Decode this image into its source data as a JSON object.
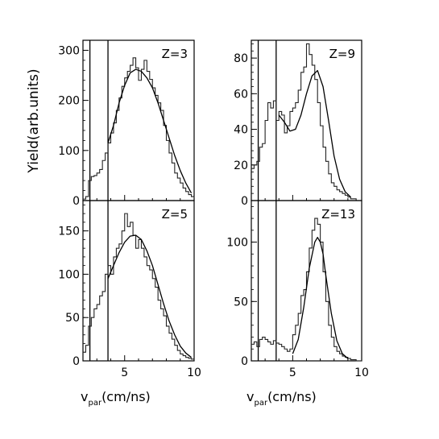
{
  "figure": {
    "ylabel": "Yield(arb.units)",
    "xlabel_main": "v",
    "xlabel_sub": "par",
    "xlabel_unit": "(cm/ns)"
  },
  "chart_data": [
    {
      "type": "line",
      "panel": "top-left",
      "annotation": "Z=3",
      "xlim": [
        2,
        10
      ],
      "ylim": [
        0,
        320
      ],
      "yticks": [
        0,
        100,
        200,
        300
      ],
      "xticks": [
        5,
        10
      ],
      "vlines": [
        2.5,
        3.8
      ],
      "series": [
        {
          "style": "histogram",
          "x": [
            2.0,
            2.2,
            2.4,
            2.6,
            2.8,
            3.0,
            3.2,
            3.4,
            3.6,
            3.8,
            4.0,
            4.2,
            4.4,
            4.6,
            4.8,
            5.0,
            5.2,
            5.4,
            5.6,
            5.8,
            6.0,
            6.2,
            6.4,
            6.6,
            6.8,
            7.0,
            7.2,
            7.4,
            7.6,
            7.8,
            8.0,
            8.2,
            8.4,
            8.6,
            8.8,
            9.0,
            9.2,
            9.4,
            9.6,
            9.8,
            10.0
          ],
          "y": [
            3,
            8,
            40,
            48,
            50,
            55,
            62,
            80,
            95,
            115,
            135,
            155,
            180,
            205,
            228,
            245,
            258,
            270,
            285,
            265,
            240,
            262,
            280,
            258,
            242,
            225,
            210,
            195,
            180,
            150,
            120,
            95,
            75,
            55,
            45,
            35,
            25,
            18,
            12,
            8,
            5
          ]
        },
        {
          "style": "fit",
          "x": [
            3.8,
            4.2,
            4.6,
            5.0,
            5.4,
            5.8,
            6.2,
            6.6,
            7.0,
            7.4,
            7.8,
            8.2,
            8.6,
            9.0,
            9.4,
            9.8
          ],
          "y": [
            115,
            150,
            195,
            230,
            255,
            262,
            258,
            245,
            225,
            195,
            160,
            125,
            90,
            60,
            35,
            15
          ]
        }
      ]
    },
    {
      "type": "line",
      "panel": "top-right",
      "annotation": "Z=9",
      "xlim": [
        2,
        10
      ],
      "ylim": [
        0,
        90
      ],
      "yticks": [
        0,
        20,
        40,
        60,
        80
      ],
      "xticks": [
        5,
        10
      ],
      "vlines": [
        2.5,
        3.8
      ],
      "series": [
        {
          "style": "histogram",
          "x": [
            2.0,
            2.2,
            2.4,
            2.6,
            2.8,
            3.0,
            3.2,
            3.4,
            3.6,
            3.8,
            4.0,
            4.2,
            4.4,
            4.6,
            4.8,
            5.0,
            5.2,
            5.4,
            5.6,
            5.8,
            6.0,
            6.2,
            6.4,
            6.6,
            6.8,
            7.0,
            7.2,
            7.4,
            7.6,
            7.8,
            8.0,
            8.2,
            8.4,
            8.6,
            8.8,
            9.0,
            9.2,
            9.4,
            9.6,
            9.8,
            10.0
          ],
          "y": [
            18,
            20,
            22,
            30,
            32,
            45,
            55,
            52,
            56,
            45,
            50,
            48,
            38,
            42,
            50,
            52,
            55,
            62,
            72,
            75,
            88,
            82,
            76,
            68,
            55,
            42,
            30,
            22,
            15,
            10,
            8,
            6,
            5,
            4,
            3,
            2,
            1,
            1,
            0,
            0,
            0
          ]
        },
        {
          "style": "fit",
          "x": [
            4.0,
            4.4,
            4.8,
            5.2,
            5.6,
            6.0,
            6.4,
            6.8,
            7.2,
            7.6,
            8.0,
            8.4,
            8.8,
            9.2
          ],
          "y": [
            48,
            44,
            39,
            40,
            48,
            60,
            70,
            73,
            64,
            45,
            25,
            12,
            5,
            2
          ]
        }
      ]
    },
    {
      "type": "line",
      "panel": "bottom-left",
      "annotation": "Z=5",
      "xlim": [
        2,
        10
      ],
      "ylim": [
        0,
        185
      ],
      "yticks": [
        0,
        50,
        100,
        150
      ],
      "xticks": [
        5,
        10
      ],
      "vlines": [
        2.5,
        3.8
      ],
      "series": [
        {
          "style": "histogram",
          "x": [
            2.0,
            2.2,
            2.4,
            2.6,
            2.8,
            3.0,
            3.2,
            3.4,
            3.6,
            3.8,
            4.0,
            4.2,
            4.4,
            4.6,
            4.8,
            5.0,
            5.2,
            5.4,
            5.6,
            5.8,
            6.0,
            6.2,
            6.4,
            6.6,
            6.8,
            7.0,
            7.2,
            7.4,
            7.6,
            7.8,
            8.0,
            8.2,
            8.4,
            8.6,
            8.8,
            9.0,
            9.2,
            9.4,
            9.6,
            9.8,
            10.0
          ],
          "y": [
            10,
            18,
            40,
            50,
            60,
            65,
            75,
            80,
            100,
            110,
            100,
            120,
            130,
            135,
            150,
            170,
            155,
            160,
            145,
            130,
            140,
            130,
            120,
            110,
            105,
            95,
            85,
            70,
            60,
            52,
            40,
            32,
            25,
            18,
            12,
            8,
            6,
            4,
            3,
            2,
            1
          ]
        },
        {
          "style": "fit",
          "x": [
            3.8,
            4.2,
            4.6,
            5.0,
            5.4,
            5.8,
            6.2,
            6.6,
            7.0,
            7.4,
            7.8,
            8.2,
            8.6,
            9.0,
            9.4,
            9.8
          ],
          "y": [
            95,
            110,
            125,
            137,
            144,
            145,
            140,
            127,
            110,
            88,
            66,
            46,
            30,
            17,
            9,
            4
          ]
        }
      ]
    },
    {
      "type": "line",
      "panel": "bottom-right",
      "annotation": "Z=13",
      "xlim": [
        2,
        10
      ],
      "ylim": [
        0,
        135
      ],
      "yticks": [
        0,
        50,
        100
      ],
      "xticks": [
        5,
        10
      ],
      "vlines": [
        2.5,
        3.8
      ],
      "series": [
        {
          "style": "histogram",
          "x": [
            2.0,
            2.2,
            2.4,
            2.6,
            2.8,
            3.0,
            3.2,
            3.4,
            3.6,
            3.8,
            4.0,
            4.2,
            4.4,
            4.6,
            4.8,
            5.0,
            5.2,
            5.4,
            5.6,
            5.8,
            6.0,
            6.2,
            6.4,
            6.6,
            6.8,
            7.0,
            7.2,
            7.4,
            7.6,
            7.8,
            8.0,
            8.2,
            8.4,
            8.6,
            8.8,
            9.0,
            9.2,
            9.4,
            9.6,
            9.8,
            10.0
          ],
          "y": [
            14,
            16,
            12,
            18,
            20,
            18,
            16,
            14,
            17,
            15,
            14,
            12,
            10,
            8,
            10,
            22,
            30,
            40,
            55,
            60,
            75,
            95,
            110,
            120,
            115,
            100,
            75,
            50,
            30,
            20,
            12,
            8,
            6,
            4,
            3,
            2,
            1,
            1,
            0,
            0,
            0
          ]
        },
        {
          "style": "fit",
          "x": [
            5.0,
            5.4,
            5.8,
            6.2,
            6.6,
            6.8,
            7.0,
            7.2,
            7.4,
            7.8,
            8.2,
            8.6,
            9.0
          ],
          "y": [
            6,
            18,
            45,
            78,
            100,
            104,
            100,
            90,
            72,
            40,
            17,
            6,
            2
          ]
        }
      ]
    }
  ]
}
